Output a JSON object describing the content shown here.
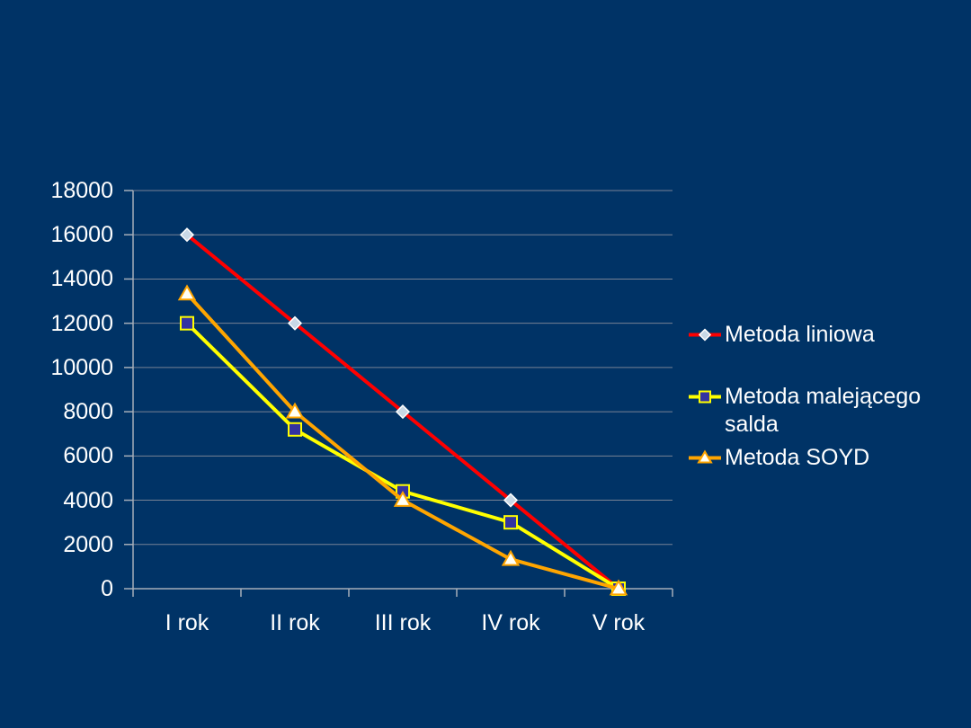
{
  "slide": {
    "background": "#003366"
  },
  "chart_data": {
    "type": "line",
    "title": "",
    "xlabel": "",
    "ylabel": "",
    "categories": [
      "I rok",
      "II rok",
      "III rok",
      "IV rok",
      "V rok"
    ],
    "series": [
      {
        "name": "Metoda liniowa",
        "color": "#FF0000",
        "marker": "diamond",
        "marker_fill": "#C8D8E6",
        "marker_stroke": "#FFFFFF",
        "values": [
          16000,
          12000,
          8000,
          4000,
          0
        ]
      },
      {
        "name": "Metoda malejącego salda",
        "color": "#FFFF00",
        "marker": "square",
        "marker_fill": "#3333A0",
        "marker_stroke": "#FFFF00",
        "values": [
          12000,
          7200,
          4400,
          3000,
          0
        ]
      },
      {
        "name": "Metoda SOYD",
        "color": "#FFA500",
        "marker": "triangle",
        "marker_fill": "#FFFFF5",
        "marker_stroke": "#FFA500",
        "values": [
          13333,
          8000,
          4000,
          1333,
          0
        ]
      }
    ],
    "ylim": [
      0,
      18000
    ],
    "ytick_step": 2000,
    "yticks": [
      0,
      2000,
      4000,
      6000,
      8000,
      10000,
      12000,
      14000,
      16000,
      18000
    ],
    "grid": true,
    "legend_position": "right",
    "colors": {
      "text": "#FFFFFF",
      "gridline": "#778295",
      "axis": "#A6AEB9"
    }
  }
}
